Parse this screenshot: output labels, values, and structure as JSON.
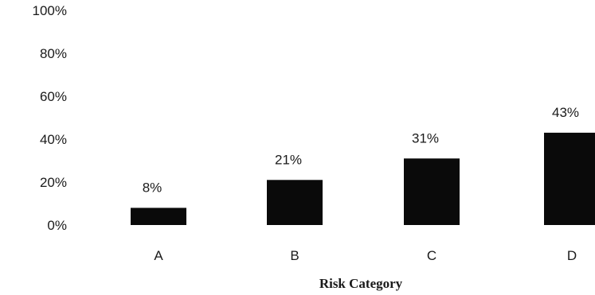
{
  "chart_data": {
    "type": "bar",
    "categories": [
      "A",
      "B",
      "C",
      "D"
    ],
    "values": [
      8,
      21,
      31,
      43
    ],
    "data_labels": [
      "8%",
      "21%",
      "31%",
      "43%"
    ],
    "title": "",
    "xlabel": "Risk Category",
    "ylabel": "",
    "ylim": [
      0,
      100
    ],
    "y_ticks": [
      0,
      20,
      40,
      60,
      80,
      100
    ],
    "y_tick_labels": [
      "0%",
      "20%",
      "40%",
      "60%",
      "80%",
      "100%"
    ],
    "grid": false,
    "legend": "none",
    "bar_color": "#0a0a0a",
    "text_color": "#1a1a1a"
  }
}
